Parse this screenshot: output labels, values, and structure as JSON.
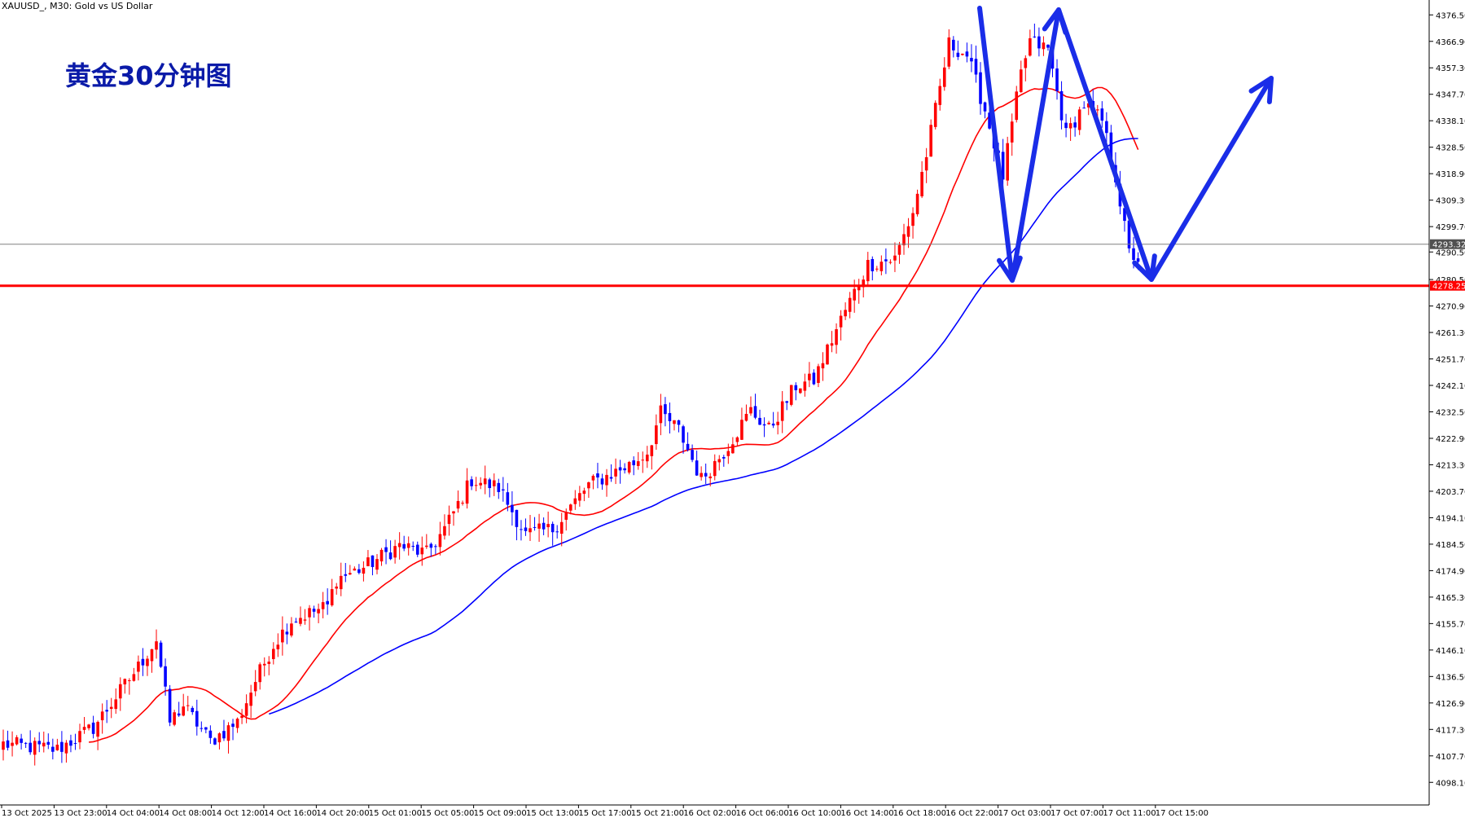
{
  "symbol_header": "XAUUSD_, M30: Gold vs US Dollar",
  "annotation": "黄金30分钟图",
  "colors": {
    "bull": "#ff0000",
    "bear": "#0000ff",
    "ma_fast": "#ff0000",
    "ma_slow": "#0000ff",
    "arrow": "#1a2de8",
    "support": "#ff0000",
    "price_line": "#808080"
  },
  "chart_data": {
    "type": "candlestick",
    "title": "",
    "ylim": [
      4089.9,
      4381.9
    ],
    "y_ticks": [
      "4376.50",
      "4366.90",
      "4357.30",
      "4347.70",
      "4338.10",
      "4328.50",
      "4318.90",
      "4309.30",
      "4299.70",
      "4290.50",
      "4280.50",
      "4270.90",
      "4261.30",
      "4251.70",
      "4242.10",
      "4232.50",
      "4222.90",
      "4213.30",
      "4203.70",
      "4194.10",
      "4184.50",
      "4174.90",
      "4165.30",
      "4155.70",
      "4146.10",
      "4136.50",
      "4126.90",
      "4117.30",
      "4107.70",
      "4098.10"
    ],
    "x_labels": [
      "13 Oct 2025",
      "13 Oct 23:00",
      "14 Oct 04:00",
      "14 Oct 08:00",
      "14 Oct 12:00",
      "14 Oct 16:00",
      "14 Oct 20:00",
      "15 Oct 01:00",
      "15 Oct 05:00",
      "15 Oct 09:00",
      "15 Oct 13:00",
      "15 Oct 17:00",
      "15 Oct 21:00",
      "16 Oct 02:00",
      "16 Oct 06:00",
      "16 Oct 10:00",
      "16 Oct 14:00",
      "16 Oct 18:00",
      "16 Oct 22:00",
      "17 Oct 03:00",
      "17 Oct 07:00",
      "17 Oct 11:00",
      "17 Oct 15:00"
    ],
    "current_price": "4293.32",
    "support_level": "4278.25",
    "anchors": [
      [
        0,
        4112
      ],
      [
        12,
        4110
      ],
      [
        20,
        4118
      ],
      [
        30,
        4140
      ],
      [
        34,
        4150
      ],
      [
        37,
        4120
      ],
      [
        40,
        4126
      ],
      [
        46,
        4113
      ],
      [
        52,
        4120
      ],
      [
        56,
        4135
      ],
      [
        60,
        4148
      ],
      [
        64,
        4157
      ],
      [
        72,
        4162
      ],
      [
        74,
        4172
      ],
      [
        80,
        4176
      ],
      [
        88,
        4184
      ],
      [
        94,
        4181
      ],
      [
        98,
        4190
      ],
      [
        104,
        4208
      ],
      [
        110,
        4205
      ],
      [
        116,
        4188
      ],
      [
        122,
        4190
      ],
      [
        130,
        4206
      ],
      [
        140,
        4214
      ],
      [
        143,
        4218
      ],
      [
        146,
        4232
      ],
      [
        150,
        4226
      ],
      [
        155,
        4208
      ],
      [
        160,
        4218
      ],
      [
        166,
        4233
      ],
      [
        170,
        4226
      ],
      [
        176,
        4242
      ],
      [
        180,
        4244
      ],
      [
        186,
        4266
      ],
      [
        192,
        4286
      ],
      [
        198,
        4288
      ],
      [
        202,
        4305
      ],
      [
        205,
        4326
      ],
      [
        210,
        4366
      ],
      [
        214,
        4362
      ],
      [
        218,
        4342
      ],
      [
        222,
        4318
      ],
      [
        226,
        4355
      ],
      [
        228,
        4367
      ],
      [
        232,
        4364
      ],
      [
        236,
        4333
      ],
      [
        240,
        4344
      ],
      [
        244,
        4338
      ],
      [
        247,
        4318
      ],
      [
        250,
        4290
      ],
      [
        252,
        4288
      ]
    ],
    "series": [
      {
        "name": "",
        "type": "ma",
        "period": 20
      },
      {
        "name": "",
        "type": "ma",
        "period": 60
      }
    ]
  }
}
